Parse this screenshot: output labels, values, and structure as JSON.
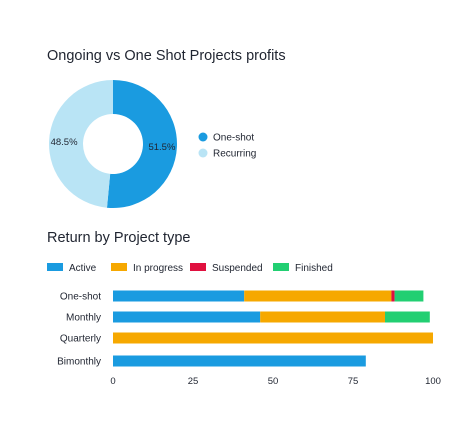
{
  "chart_data": [
    {
      "type": "pie",
      "title": "Ongoing vs One Shot Projects profits",
      "donut": true,
      "legend_position": "right",
      "slices": [
        {
          "name": "One-shot",
          "value": 51.5,
          "label": "51.5%",
          "color": "#1a9be0"
        },
        {
          "name": "Recurring",
          "value": 48.5,
          "label": "48.5%",
          "color": "#b9e4f5"
        }
      ]
    },
    {
      "type": "bar",
      "orientation": "horizontal",
      "stacked": true,
      "title": "Return by Project type",
      "legend_position": "top-left",
      "categories": [
        "One-shot",
        "Monthly",
        "Quarterly",
        "Bimonthly"
      ],
      "series": [
        {
          "name": "Active",
          "color": "#1a9be0",
          "values": [
            41,
            46,
            0,
            79
          ]
        },
        {
          "name": "In progress",
          "color": "#f6a800",
          "values": [
            46,
            39,
            100,
            0
          ]
        },
        {
          "name": "Suspended",
          "color": "#e0103f",
          "values": [
            1,
            0,
            0,
            0
          ]
        },
        {
          "name": "Finished",
          "color": "#22cf72",
          "values": [
            9,
            14,
            0,
            0
          ]
        }
      ],
      "xlim": [
        0,
        100
      ],
      "xticks": [
        0,
        25,
        50,
        75,
        100
      ],
      "xlabel": "",
      "ylabel": "",
      "grid": false
    }
  ]
}
